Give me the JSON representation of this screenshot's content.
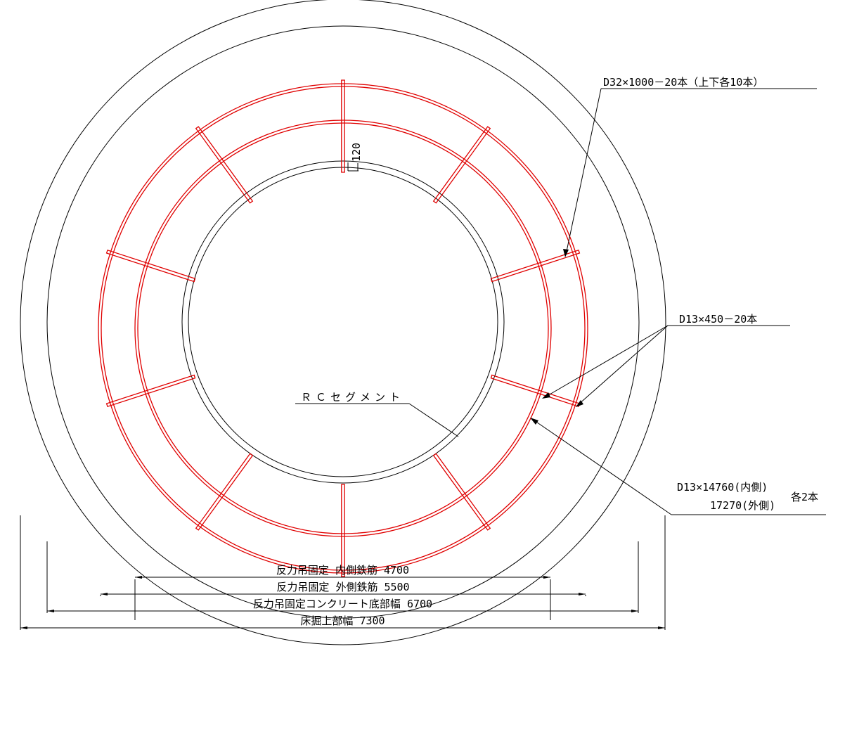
{
  "labels": {
    "d32_bar": "D32×1000－20本（上下各10本）",
    "d13_anchor": "D13×450－20本",
    "segment": "ＲＣセグメント",
    "ring_inner": "D13×14760(内側)",
    "ring_outer": "17270(外側)",
    "ring_count": "各2本",
    "gap_120": "120"
  },
  "dimensions": [
    {
      "label": "反力吊固定 内側鉄筋 4700",
      "value_mm": 4700
    },
    {
      "label": "反力吊固定 外側鉄筋 5500",
      "value_mm": 5500
    },
    {
      "label": "反力吊固定コンクリート底部幅 6700",
      "value_mm": 6700
    },
    {
      "label": "床掘上部幅 7300",
      "value_mm": 7300
    }
  ],
  "colors": {
    "rebar": "#e00000",
    "line": "#000000"
  },
  "rebar_counts": {
    "d32_bars": 20,
    "d13_anchor_bars": 20,
    "ring_bars_each": 2
  }
}
